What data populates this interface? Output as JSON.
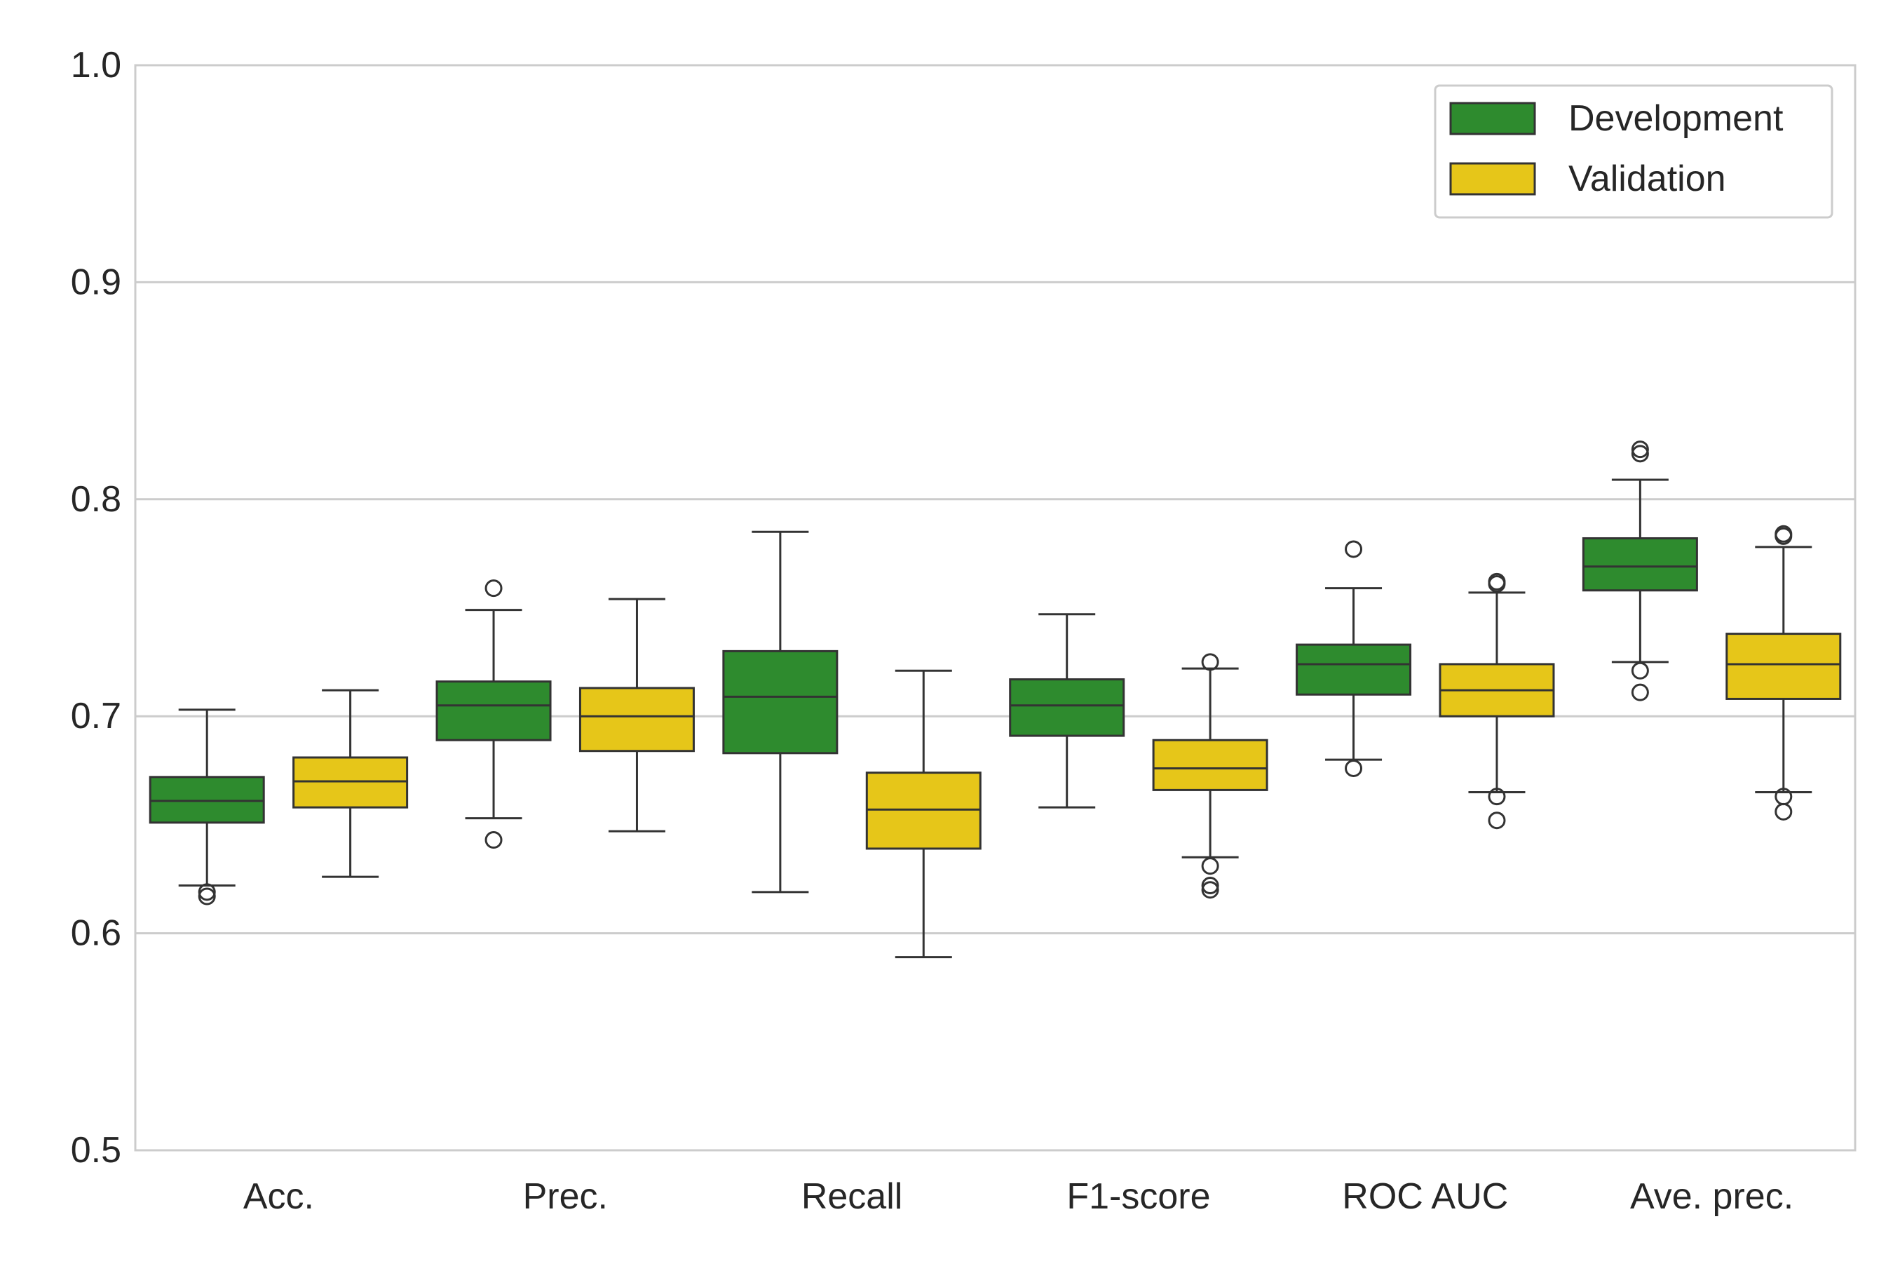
{
  "chart_data": {
    "type": "boxplot",
    "title": "",
    "xlabel": "",
    "ylabel": "",
    "ylim": [
      0.5,
      1.0
    ],
    "yticks": [
      0.5,
      0.6,
      0.7,
      0.8,
      0.9,
      1.0
    ],
    "ytick_labels": [
      "0.5",
      "0.6",
      "0.7",
      "0.8",
      "0.9",
      "1.0"
    ],
    "grid": "horizontal",
    "legend_placement": "top-right",
    "categories": [
      "Acc.",
      "Prec.",
      "Recall",
      "F1-score",
      "ROC AUC",
      "Ave. prec."
    ],
    "series": [
      {
        "name": "Development",
        "color": "#2e8b2e",
        "boxes": [
          {
            "whisker_low": 0.622,
            "q1": 0.651,
            "median": 0.661,
            "q3": 0.672,
            "whisker_high": 0.703,
            "outliers": [
              0.617,
              0.619
            ]
          },
          {
            "whisker_low": 0.653,
            "q1": 0.689,
            "median": 0.705,
            "q3": 0.716,
            "whisker_high": 0.749,
            "outliers": [
              0.643,
              0.759
            ]
          },
          {
            "whisker_low": 0.619,
            "q1": 0.683,
            "median": 0.709,
            "q3": 0.73,
            "whisker_high": 0.785,
            "outliers": []
          },
          {
            "whisker_low": 0.658,
            "q1": 0.691,
            "median": 0.705,
            "q3": 0.717,
            "whisker_high": 0.747,
            "outliers": []
          },
          {
            "whisker_low": 0.68,
            "q1": 0.71,
            "median": 0.724,
            "q3": 0.733,
            "whisker_high": 0.759,
            "outliers": [
              0.676,
              0.777
            ]
          },
          {
            "whisker_low": 0.725,
            "q1": 0.758,
            "median": 0.769,
            "q3": 0.782,
            "whisker_high": 0.809,
            "outliers": [
              0.711,
              0.721,
              0.821,
              0.823
            ]
          }
        ]
      },
      {
        "name": "Validation",
        "color": "#e6c619",
        "boxes": [
          {
            "whisker_low": 0.626,
            "q1": 0.658,
            "median": 0.67,
            "q3": 0.681,
            "whisker_high": 0.712,
            "outliers": []
          },
          {
            "whisker_low": 0.647,
            "q1": 0.684,
            "median": 0.7,
            "q3": 0.713,
            "whisker_high": 0.754,
            "outliers": []
          },
          {
            "whisker_low": 0.589,
            "q1": 0.639,
            "median": 0.657,
            "q3": 0.674,
            "whisker_high": 0.721,
            "outliers": []
          },
          {
            "whisker_low": 0.635,
            "q1": 0.666,
            "median": 0.676,
            "q3": 0.689,
            "whisker_high": 0.722,
            "outliers": [
              0.62,
              0.622,
              0.631,
              0.725
            ]
          },
          {
            "whisker_low": 0.665,
            "q1": 0.7,
            "median": 0.712,
            "q3": 0.724,
            "whisker_high": 0.757,
            "outliers": [
              0.652,
              0.663,
              0.761,
              0.762
            ]
          },
          {
            "whisker_low": 0.665,
            "q1": 0.708,
            "median": 0.724,
            "q3": 0.738,
            "whisker_high": 0.778,
            "outliers": [
              0.656,
              0.663,
              0.783,
              0.784
            ]
          }
        ]
      }
    ]
  }
}
